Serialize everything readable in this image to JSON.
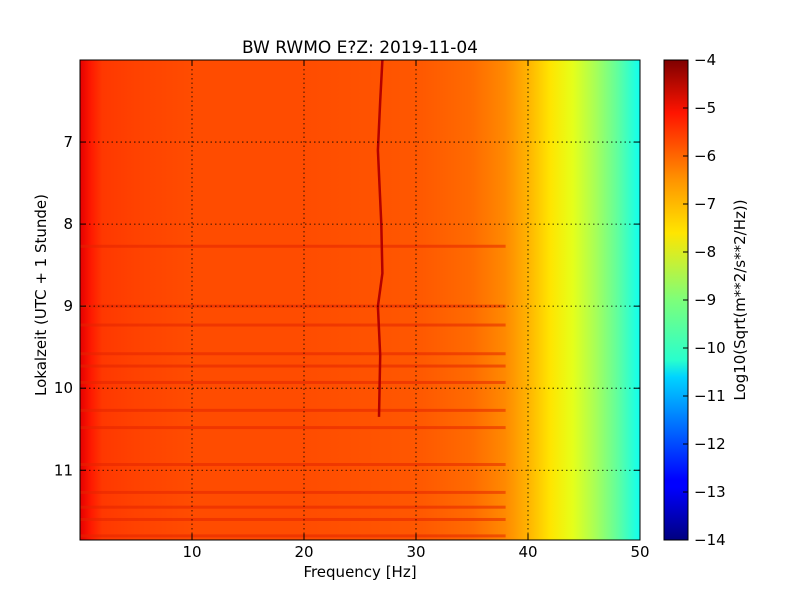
{
  "chart_data": {
    "type": "heatmap",
    "title": "BW RWMO E?Z: 2019-11-04",
    "xlabel": "Frequency [Hz]",
    "ylabel": "Lokalzeit (UTC + 1 Stunde)",
    "xlim": [
      0,
      50
    ],
    "ylim": [
      6.0,
      11.85
    ],
    "y_inverted": true,
    "grid": true,
    "x_ticks": [
      10,
      20,
      30,
      40,
      50
    ],
    "y_ticks": [
      7,
      8,
      9,
      10,
      11
    ],
    "colorbar": {
      "label": "Log10(Sqrt(m**2/s**2/Hz))",
      "range": [
        -14,
        -4
      ],
      "ticks": [
        -4,
        -5,
        -6,
        -7,
        -8,
        -9,
        -10,
        -11,
        -12,
        -13,
        -14
      ],
      "colormap": "jet"
    },
    "spectrum_profile": {
      "frequency_hz": [
        0,
        1,
        2,
        5,
        10,
        20,
        30,
        35,
        38,
        40,
        42,
        44,
        46,
        48,
        50
      ],
      "log10_amplitude": [
        -5.0,
        -5.5,
        -5.8,
        -5.9,
        -6.0,
        -6.0,
        -6.1,
        -6.3,
        -6.6,
        -7.0,
        -7.5,
        -8.0,
        -8.6,
        -9.3,
        -10.1
      ]
    },
    "tonal_line": {
      "frequency_hz": [
        27.0,
        26.8,
        26.6,
        26.9,
        27.0,
        26.6,
        26.8,
        26.7
      ],
      "time_h": [
        6.0,
        6.5,
        7.1,
        8.0,
        8.6,
        9.0,
        9.6,
        10.35
      ]
    },
    "band_times_h": [
      8.27,
      9.0,
      9.23,
      9.58,
      9.73,
      9.93,
      10.27,
      10.48,
      10.93,
      11.27,
      11.45,
      11.6,
      11.8
    ]
  }
}
